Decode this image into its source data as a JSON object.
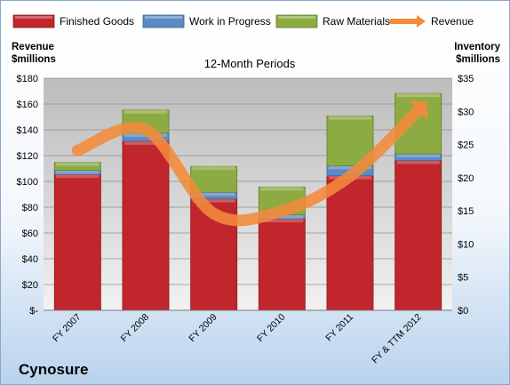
{
  "company": "Cynosure",
  "chart_data": {
    "type": "bar",
    "subtitle": "12-Month Periods",
    "y_left_label": [
      "Revenue",
      "$millions"
    ],
    "y_right_label": [
      "Inventory",
      "$millions"
    ],
    "categories": [
      "FY 2007",
      "FY 2008",
      "FY 2009",
      "FY 2010",
      "FY 2011",
      "FY & TTM 2012"
    ],
    "series": [
      {
        "name": "Finished Goods",
        "axis": "right",
        "color": "#c0262b",
        "values": [
          20.5,
          25.5,
          16.8,
          13.8,
          20.3,
          22.6
        ]
      },
      {
        "name": "Work in Progress",
        "axis": "right",
        "color": "#5b8ac6",
        "values": [
          0.6,
          1.2,
          1.0,
          0.6,
          1.5,
          1.0
        ]
      },
      {
        "name": "Raw Materials",
        "axis": "right",
        "color": "#8cab43",
        "values": [
          1.2,
          3.5,
          3.9,
          4.2,
          7.5,
          9.1
        ]
      },
      {
        "name": "Revenue",
        "axis": "left",
        "type": "line",
        "color": "#f28a3a",
        "values": [
          124,
          140,
          75,
          77,
          104,
          155
        ]
      }
    ],
    "y_left": {
      "ylim": [
        0,
        180
      ],
      "ticks": [
        "$-",
        "$20",
        "$40",
        "$60",
        "$80",
        "$100",
        "$120",
        "$140",
        "$160",
        "$180"
      ]
    },
    "y_right": {
      "ylim": [
        0,
        35
      ],
      "ticks": [
        "$0",
        "$5",
        "$10",
        "$15",
        "$20",
        "$25",
        "$30",
        "$35"
      ]
    },
    "grid": true,
    "legend_position": "top"
  }
}
